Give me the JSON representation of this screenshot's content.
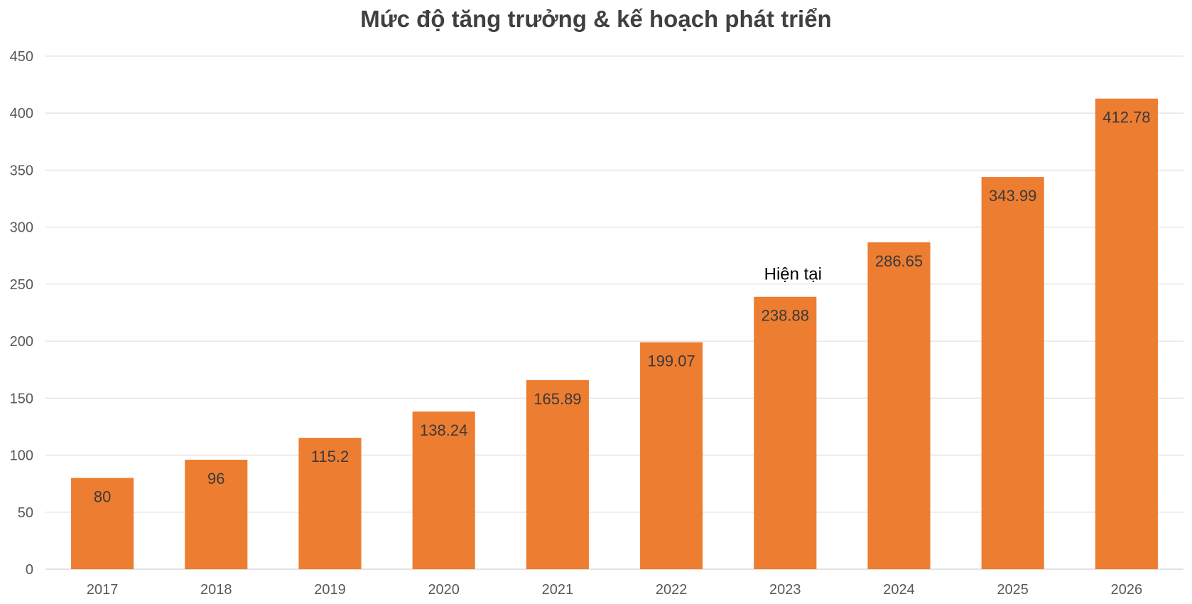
{
  "chart_data": {
    "type": "bar",
    "title": "Mức độ tăng trưởng & kế hoạch phát triển",
    "xlabel": "",
    "ylabel": "",
    "categories": [
      "2017",
      "2018",
      "2019",
      "2020",
      "2021",
      "2022",
      "2023",
      "2024",
      "2025",
      "2026"
    ],
    "values": [
      80,
      96,
      115.2,
      138.24,
      165.89,
      199.07,
      238.88,
      286.65,
      343.99,
      412.78
    ],
    "data_labels": [
      "80",
      "96",
      "115.2",
      "138.24",
      "165.89",
      "199.07",
      "238.88",
      "286.65",
      "343.99",
      "412.78"
    ],
    "ylim": [
      0,
      450
    ],
    "yticks": [
      0,
      50,
      100,
      150,
      200,
      250,
      300,
      350,
      400,
      450
    ],
    "grid": true,
    "legend": "none",
    "bar_color": "#ED7D31",
    "annotations": [
      {
        "category": "2023",
        "text": "Hiện tại"
      }
    ]
  }
}
